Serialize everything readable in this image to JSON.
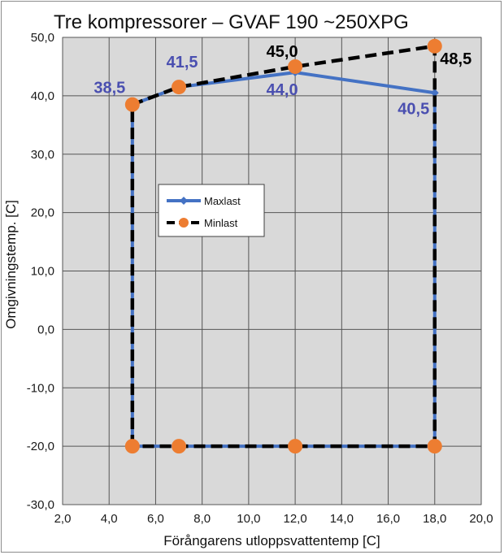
{
  "chart_data": {
    "type": "line",
    "title": "Tre kompressorer – GVAF 190 ~250XPG",
    "xlabel": "Förångarens utloppsvattentemp [C]",
    "ylabel": "Omgivningstemp. [C]",
    "xlim": [
      2,
      20
    ],
    "ylim": [
      -30,
      50
    ],
    "x_ticks": [
      "2,0",
      "4,0",
      "6,0",
      "8,0",
      "10,0",
      "12,0",
      "14,0",
      "16,0",
      "18,0",
      "20,0"
    ],
    "y_ticks": [
      "-30,0",
      "-20,0",
      "-10,0",
      "0,0",
      "10,0",
      "20,0",
      "30,0",
      "40,0",
      "50,0"
    ],
    "grid": true,
    "plot_background": "#d9d9d9",
    "legend_position": "center-left",
    "series": [
      {
        "name": "Maxlast",
        "color": "#4472c4",
        "marker": "diamond",
        "line": "solid",
        "points": [
          [
            5,
            -20
          ],
          [
            5,
            38.5
          ],
          [
            7,
            41.5
          ],
          [
            12,
            44.0
          ],
          [
            18,
            40.5
          ],
          [
            18,
            -20
          ],
          [
            5,
            -20
          ]
        ]
      },
      {
        "name": "Minlast",
        "color": "#000000",
        "marker_color": "#ed7d31",
        "marker": "circle",
        "line": "dashed",
        "points": [
          [
            5,
            -20
          ],
          [
            5,
            38.5
          ],
          [
            7,
            41.5
          ],
          [
            12,
            45.0
          ],
          [
            18,
            48.5
          ],
          [
            18,
            -20
          ],
          [
            12,
            -20
          ],
          [
            7,
            -20
          ],
          [
            5,
            -20
          ]
        ]
      }
    ],
    "annotations": [
      {
        "text": "38,5",
        "x": 5,
        "y": 38.5,
        "color": "#4a4fb0"
      },
      {
        "text": "41,5",
        "x": 7,
        "y": 41.5,
        "color": "#4a4fb0"
      },
      {
        "text": "45,0",
        "x": 12,
        "y": 45.0,
        "color": "#000000"
      },
      {
        "text": "44,0",
        "x": 12,
        "y": 44.0,
        "color": "#4a4fb0"
      },
      {
        "text": "48,5",
        "x": 18,
        "y": 48.5,
        "color": "#000000"
      },
      {
        "text": "40,5",
        "x": 18,
        "y": 40.5,
        "color": "#4a4fb0"
      }
    ]
  }
}
